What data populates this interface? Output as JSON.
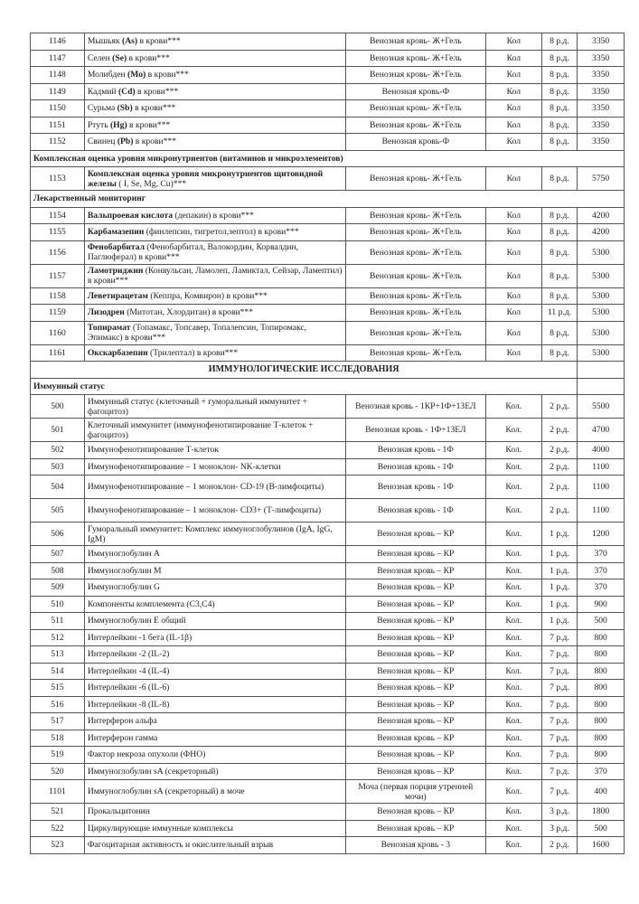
{
  "rows": [
    {
      "type": "item",
      "no": "1146",
      "pre": "Мышьяк ",
      "b": "(As)",
      "post": " в крови***",
      "sample": "Венозная кровь- Ж+Гель",
      "method": "Кол",
      "term": "8 р.д.",
      "price": "3350"
    },
    {
      "type": "item",
      "no": "1147",
      "pre": "Селен ",
      "b": "(Se)",
      "post": " в крови***",
      "sample": "Венозная кровь- Ж+Гель",
      "method": "Кол",
      "term": "8 р.д.",
      "price": "3350"
    },
    {
      "type": "item",
      "no": "1148",
      "pre": "Молибден ",
      "b": "(Mo)",
      "post": " в крови***",
      "sample": "Венозная кровь- Ж+Гель",
      "method": "Кол",
      "term": "8 р.д.",
      "price": "3350"
    },
    {
      "type": "item",
      "no": "1149",
      "pre": "Кадмий ",
      "b": "(Cd)",
      "post": " в крови***",
      "sample": "Венозная кровь-Ф",
      "method": "Кол",
      "term": "8 р.д.",
      "price": "3350"
    },
    {
      "type": "item",
      "no": "1150",
      "pre": "Сурьма ",
      "b": "(Sb)",
      "post": " в крови***",
      "sample": "Венозная кровь- Ж+Гель",
      "method": "Кол",
      "term": "8 р.д.",
      "price": "3350"
    },
    {
      "type": "item",
      "no": "1151",
      "pre": "Ртуть ",
      "b": "(Hg)",
      "post": " в крови***",
      "sample": "Венозная кровь- Ж+Гель",
      "method": "Кол",
      "term": "8 р.д.",
      "price": "3350"
    },
    {
      "type": "item",
      "no": "1152",
      "pre": "Свинец ",
      "b": "(Pb)",
      "post": " в крови***",
      "sample": "Венозная кровь-Ф",
      "method": "Кол",
      "term": "8 р.д.",
      "price": "3350"
    },
    {
      "type": "section",
      "title": "Комплексная оценка уровня микронутриентов (витаминов и микроэлементов)"
    },
    {
      "type": "item",
      "d": true,
      "no": "1153",
      "pre": "",
      "b": "Комплексная оценка уровня микронутриентов щитовидной железы",
      "post": " ( I, Se, Mg, Cu)***",
      "sample": "Венозная кровь- Ж+Гель",
      "method": "Кол",
      "term": "8 р.д.",
      "price": "5750"
    },
    {
      "type": "section",
      "title": "Лекарственный мониторинг"
    },
    {
      "type": "item",
      "no": "1154",
      "pre": "",
      "b": "Вальпроевая кислота",
      "post": " (депакин) в крови***",
      "sample": "Венозная кровь- Ж+Гель",
      "method": "Кол",
      "term": "8 р.д.",
      "price": "4200"
    },
    {
      "type": "item",
      "no": "1155",
      "pre": "",
      "b": "Карбамазепин",
      "post": " (финлепсин, тигретол,зептол) в крови***",
      "sample": "Венозная кровь- Ж+Гель",
      "method": "Кол",
      "term": "8 р.д.",
      "price": "4200"
    },
    {
      "type": "item",
      "d": true,
      "no": "1156",
      "pre": "",
      "b": "Фенобарбитал",
      "post": " (Фенобарбитал, Валокордин, Корвалдин, Паглюферал) в крови***",
      "sample": "Венозная кровь- Ж+Гель",
      "method": "Кол",
      "term": "8 р.д.",
      "price": "5300"
    },
    {
      "type": "item",
      "d": true,
      "no": "1157",
      "pre": "",
      "b": "Ламотриджин",
      "post": " (Конвульсан, Ламолеп, Ламиктал, Сейзар, Ламептил) в крови***",
      "sample": "Венозная кровь- Ж+Гель",
      "method": "Кол",
      "term": "8 р.д.",
      "price": "5300"
    },
    {
      "type": "item",
      "no": "1158",
      "pre": "",
      "b": "Леветирацетам",
      "post": " (Кеппра, Комвирон) в крови***",
      "sample": "Венозная кровь- Ж+Гель",
      "method": "Кол",
      "term": "8 р.д.",
      "price": "5300"
    },
    {
      "type": "item",
      "no": "1159",
      "pre": "",
      "b": "Лизодрен",
      "post": " (Митотан, Хлордитан) в крови***",
      "sample": "Венозная кровь- Ж+Гель",
      "method": "Кол",
      "term": "11 р.д.",
      "price": "5300"
    },
    {
      "type": "item",
      "d": true,
      "no": "1160",
      "pre": "",
      "b": "Топирамат",
      "post": " (Топамакс, Топсавер, Топалепсин, Топиромакс, Эпимакс) в крови***",
      "sample": "Венозная кровь- Ж+Гель",
      "method": "Кол",
      "term": "8 р.д.",
      "price": "5300"
    },
    {
      "type": "item",
      "no": "1161",
      "pre": "",
      "b": "Окскарбазепин",
      "post": " (Трилептал) в крови***",
      "sample": "Венозная кровь- Ж+Гель",
      "method": "Кол",
      "term": "8 р.д.",
      "price": "5300"
    },
    {
      "type": "big",
      "title": "ИММУНОЛОГИЧЕСКИЕ ИССЛЕДОВАНИЯ"
    },
    {
      "type": "sub",
      "title": "Иммунный статус"
    },
    {
      "type": "item",
      "d": true,
      "no": "500",
      "pre": "Иммунный статус (клеточный + гуморальный иммунитет + фагоцитоз)",
      "b": "",
      "post": "",
      "sample": "Венозная кровь - 1КР+1Ф+1ЗЕЛ",
      "method": "Кол.",
      "term": "2 р.д.",
      "price": "5500"
    },
    {
      "type": "item",
      "d": true,
      "no": "501",
      "pre": "Клеточный иммунитет (иммунофенотипирование Т-клеток + фагоцитоз)",
      "b": "",
      "post": "",
      "sample": "Венозная кровь - 1Ф+1ЗЕЛ",
      "method": "Кол.",
      "term": "2 р.д.",
      "price": "4700"
    },
    {
      "type": "item",
      "no": "502",
      "pre": "Иммунофенотипирование Т-клеток",
      "b": "",
      "post": "",
      "sample": "Венозная кровь - 1Ф",
      "method": "Кол.",
      "term": "2 р.д.",
      "price": "4000"
    },
    {
      "type": "item",
      "no": "503",
      "pre": "Иммунофенотипирование – 1 моноклон- NK-клетки",
      "b": "",
      "post": "",
      "sample": "Венозная кровь - 1Ф",
      "method": "Кол.",
      "term": "2 р.д.",
      "price": "1100"
    },
    {
      "type": "item",
      "d": true,
      "no": "504",
      "pre": "Иммунофенотипирование – 1 моноклон- CD-19 (В-лимфоциты)",
      "b": "",
      "post": "",
      "sample": "Венозная кровь - 1Ф",
      "method": "Кол.",
      "term": "2 р.д.",
      "price": "1100"
    },
    {
      "type": "item",
      "d": true,
      "no": "505",
      "pre": "Иммунофенотипирование – 1 моноклон- CD3+ (Т-лимфоциты)",
      "b": "",
      "post": "",
      "sample": "Венозная кровь - 1Ф",
      "method": "Кол.",
      "term": "2 р.д.",
      "price": "1100"
    },
    {
      "type": "item",
      "d": true,
      "no": "506",
      "pre": "Гуморальный иммунитет: Комплекс иммуноглобулинов (IgA, IgG, IgM)",
      "b": "",
      "post": "",
      "sample": "Венозная кровь – КР",
      "method": "Кол.",
      "term": "1 р.д.",
      "price": "1200"
    },
    {
      "type": "item",
      "no": "507",
      "pre": "Иммуноглобулин А",
      "b": "",
      "post": "",
      "sample": "Венозная кровь – КР",
      "method": "Кол.",
      "term": "1 р.д.",
      "price": "370"
    },
    {
      "type": "item",
      "no": "508",
      "pre": "Иммуноглобулин М",
      "b": "",
      "post": "",
      "sample": "Венозная кровь – КР",
      "method": "Кол.",
      "term": "1 р.д.",
      "price": "370"
    },
    {
      "type": "item",
      "no": "509",
      "pre": "Иммуноглобулин G",
      "b": "",
      "post": "",
      "sample": "Венозная кровь – КР",
      "method": "Кол.",
      "term": "1 р.д.",
      "price": "370"
    },
    {
      "type": "item",
      "no": "510",
      "pre": "Компоненты комплемента (С3,С4)",
      "b": "",
      "post": "",
      "sample": "Венозная кровь – КР",
      "method": "Кол.",
      "term": "1 р.д.",
      "price": "900"
    },
    {
      "type": "item",
      "no": "511",
      "pre": "Иммуноглобулин Е общий",
      "b": "",
      "post": "",
      "sample": "Венозная кровь – КР",
      "method": "Кол.",
      "term": "1 р.д.",
      "price": "500"
    },
    {
      "type": "item",
      "no": "512",
      "pre": "Интерлейкин -1 бета (IL-1β)",
      "b": "",
      "post": "",
      "sample": "Венозная кровь – КР",
      "method": "Кол.",
      "term": "7 р.д.",
      "price": "800"
    },
    {
      "type": "item",
      "no": "513",
      "pre": "Интерлейкин -2 (IL-2)",
      "b": "",
      "post": "",
      "sample": "Венозная кровь – КР",
      "method": "Кол.",
      "term": "7 р.д.",
      "price": "800"
    },
    {
      "type": "item",
      "no": "514",
      "pre": "Интерлейкин -4 (IL-4)",
      "b": "",
      "post": "",
      "sample": "Венозная кровь – КР",
      "method": "Кол.",
      "term": "7 р.д.",
      "price": "800"
    },
    {
      "type": "item",
      "no": "515",
      "pre": "Интерлейкин -6 (IL-6)",
      "b": "",
      "post": "",
      "sample": "Венозная кровь – КР",
      "method": "Кол.",
      "term": "7 р.д.",
      "price": "800"
    },
    {
      "type": "item",
      "no": "516",
      "pre": "Интерлейкин -8 (IL-8)",
      "b": "",
      "post": "",
      "sample": "Венозная кровь – КР",
      "method": "Кол.",
      "term": "7 р.д.",
      "price": "800"
    },
    {
      "type": "item",
      "no": "517",
      "pre": "Интерферон альфа",
      "b": "",
      "post": "",
      "sample": "Венозная кровь – КР",
      "method": "Кол.",
      "term": "7 р.д.",
      "price": "800"
    },
    {
      "type": "item",
      "no": "518",
      "pre": "Интерферон гамма",
      "b": "",
      "post": "",
      "sample": "Венозная кровь – КР",
      "method": "Кол.",
      "term": "7 р.д.",
      "price": "800"
    },
    {
      "type": "item",
      "no": "519",
      "pre": "Фактор некроза опухоли (ФНО)",
      "b": "",
      "post": "",
      "sample": "Венозная кровь – КР",
      "method": "Кол.",
      "term": "7 р.д.",
      "price": "800"
    },
    {
      "type": "item",
      "no": "520",
      "pre": "Иммуноглобулин sA (секреторный)",
      "b": "",
      "post": "",
      "sample": "Венозная кровь – КР",
      "method": "Кол.",
      "term": "7 р.д.",
      "price": "370"
    },
    {
      "type": "item",
      "d": true,
      "no": "1101",
      "pre": "Иммуноглобулин sA (секреторный) в моче",
      "b": "",
      "post": "",
      "sample": "Моча (первая порция утренней мочи)",
      "method": "Кол.",
      "term": "7 р.д.",
      "price": "400"
    },
    {
      "type": "item",
      "no": "521",
      "pre": "Прокальцитонин",
      "b": "",
      "post": "",
      "sample": "Венозная кровь – КР",
      "method": "Кол.",
      "term": "3 р.д.",
      "price": "1800"
    },
    {
      "type": "item",
      "no": "522",
      "pre": "Циркулирующие иммунные комплексы",
      "b": "",
      "post": "",
      "sample": "Венозная кровь – КР",
      "method": "Кол.",
      "term": "3 р.д.",
      "price": "500"
    },
    {
      "type": "item",
      "no": "523",
      "pre": "Фагоцитарная активность и окислительный взрыв",
      "b": "",
      "post": "",
      "sample": "Венозная кровь - 3",
      "method": "Кол.",
      "term": "2 р.д.",
      "price": "1600"
    }
  ]
}
